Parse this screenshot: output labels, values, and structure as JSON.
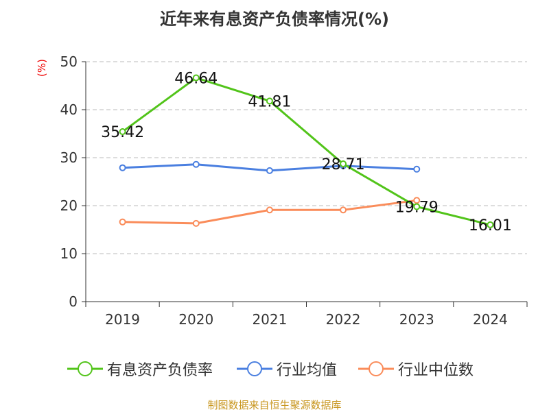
{
  "chart_data": {
    "type": "line",
    "title": "近年来有息资产负债率情况(%)",
    "ylabel": "(%)",
    "categories": [
      "2019",
      "2020",
      "2021",
      "2022",
      "2023",
      "2024"
    ],
    "ylim": [
      0,
      50
    ],
    "yticks": [
      0,
      10,
      20,
      30,
      40,
      50
    ],
    "grid": true,
    "legend_position": "bottom",
    "series": [
      {
        "name": "有息资产负债率",
        "color": "#52c41a",
        "values": [
          35.42,
          46.64,
          41.81,
          28.71,
          19.79,
          16.01
        ],
        "labels": [
          "35.42",
          "46.64",
          "41.81",
          "28.71",
          "19.79",
          "16.01"
        ]
      },
      {
        "name": "行业均值",
        "color": "#4a7fe0",
        "values": [
          27.9,
          28.6,
          27.3,
          28.3,
          27.6,
          null
        ]
      },
      {
        "name": "行业中位数",
        "color": "#fa8c5a",
        "values": [
          16.6,
          16.3,
          19.1,
          19.1,
          21.1,
          null
        ]
      }
    ]
  },
  "source": "制图数据来自恒生聚源数据库"
}
